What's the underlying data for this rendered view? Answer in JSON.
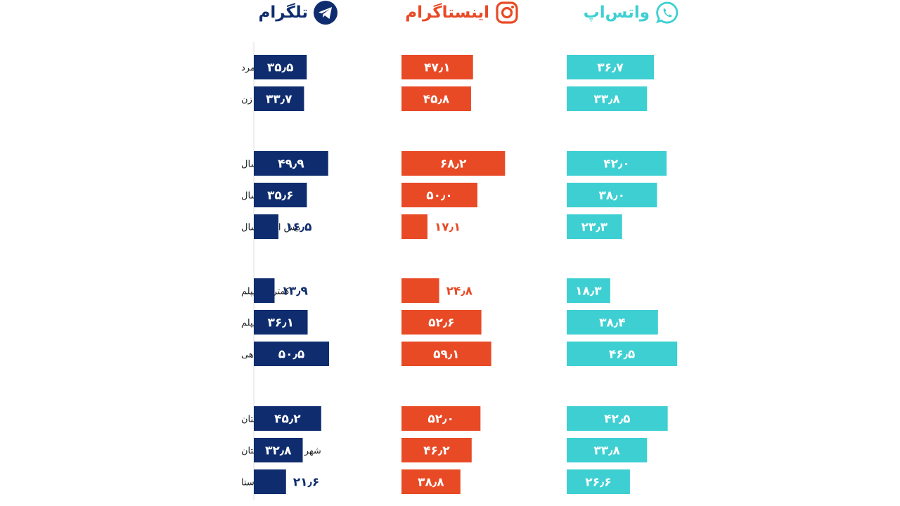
{
  "headers": [
    {
      "title": "تلگرام",
      "icon": "telegram-icon",
      "color": "#0f2d6e"
    },
    {
      "title": "اینستاگرام",
      "icon": "instagram-icon",
      "color": "#e84a26"
    },
    {
      "title": "واتس‌اپ",
      "icon": "whatsapp-icon",
      "color": "#3ecfd2"
    }
  ],
  "chart_data": {
    "type": "bar",
    "orientation": "horizontal",
    "grid": false,
    "categories": [
      "مرد",
      "زن",
      "۱۸-۲۹ سال",
      "۳۰-۴۹ سال",
      "بیش از ۵۰ سال",
      "کمتر از دیپلم",
      "دیپلم",
      "دانشگاهی",
      "مرکز استان",
      "شهر غیر مرکز استان",
      "روستا"
    ],
    "groups": [
      [
        0,
        1
      ],
      [
        2,
        3,
        4
      ],
      [
        5,
        6,
        7
      ],
      [
        8,
        9,
        10
      ]
    ],
    "series": [
      {
        "name": "تلگرام",
        "color": "#0f2d6e",
        "values": [
          35.5,
          33.7,
          49.9,
          35.6,
          16.5,
          13.9,
          36.1,
          50.5,
          45.2,
          32.8,
          21.6
        ],
        "labels": [
          "۳۵٫۵",
          "۳۳٫۷",
          "۴۹٫۹",
          "۳۵٫۶",
          "۱۶٫۵",
          "۱۳٫۹",
          "۳۶٫۱",
          "۵۰٫۵",
          "۴۵٫۲",
          "۳۲٫۸",
          "۲۱٫۶"
        ]
      },
      {
        "name": "اینستاگرام",
        "color": "#e84a26",
        "values": [
          47.1,
          45.8,
          68.2,
          50.0,
          17.1,
          24.8,
          52.6,
          59.1,
          52.0,
          46.2,
          38.8
        ],
        "labels": [
          "۴۷٫۱",
          "۴۵٫۸",
          "۶۸٫۲",
          "۵۰٫۰",
          "۱۷٫۱",
          "۲۴٫۸",
          "۵۲٫۶",
          "۵۹٫۱",
          "۵۲٫۰",
          "۴۶٫۲",
          "۳۸٫۸"
        ]
      },
      {
        "name": "واتس‌اپ",
        "color": "#3ecfd2",
        "values": [
          36.7,
          33.8,
          42.0,
          38.0,
          23.3,
          18.3,
          38.4,
          46.5,
          42.5,
          33.8,
          26.6
        ],
        "labels": [
          "۳۶٫۷",
          "۳۳٫۸",
          "۴۲٫۰",
          "۳۸٫۰",
          "۲۳٫۳",
          "۱۸٫۳",
          "۳۸٫۴",
          "۴۶٫۵",
          "۴۲٫۵",
          "۳۳٫۸",
          "۲۶٫۶"
        ]
      }
    ]
  }
}
